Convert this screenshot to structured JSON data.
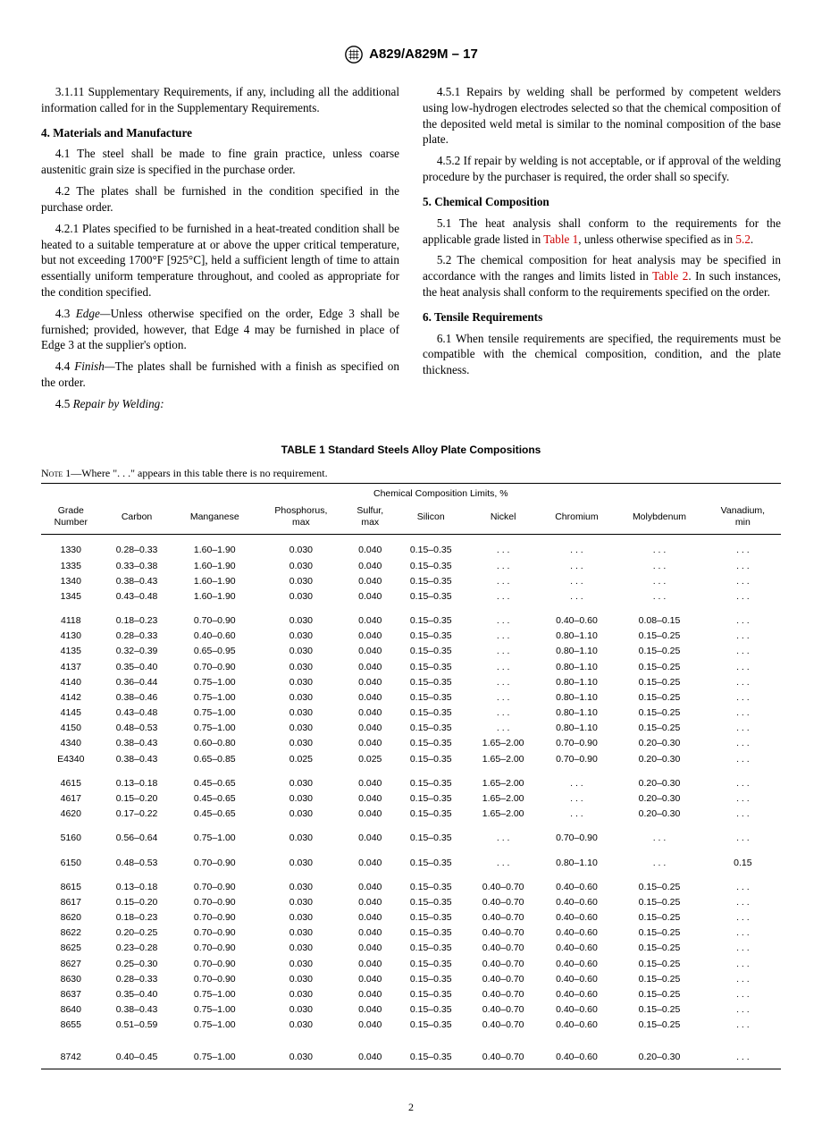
{
  "header": {
    "doc_id": "A829/A829M – 17"
  },
  "left_column": {
    "p_3_1_11": "3.1.11 Supplementary Requirements, if any, including all the additional information called for in the Supplementary Requirements.",
    "sec4_head": "4.  Materials and Manufacture",
    "p_4_1": "4.1 The steel shall be made to fine grain practice, unless coarse austenitic grain size is specified in the purchase order.",
    "p_4_2": "4.2 The plates shall be furnished in the condition specified in the purchase order.",
    "p_4_2_1": "4.2.1 Plates specified to be furnished in a heat-treated condition shall be heated to a suitable temperature at or above the upper critical temperature, but not exceeding 1700°F [925°C], held a sufficient length of time to attain essentially uniform temperature throughout, and cooled as appropriate for the condition specified.",
    "p_4_3_lead": "4.3 ",
    "p_4_3_term": "Edge—",
    "p_4_3_body": "Unless otherwise specified on the order, Edge 3 shall be furnished; provided, however, that Edge 4 may be furnished in place of Edge 3 at the supplier's option.",
    "p_4_4_lead": "4.4 ",
    "p_4_4_term": "Finish—",
    "p_4_4_body": "The plates shall be furnished with a finish as specified on the order.",
    "p_4_5_lead": "4.5 ",
    "p_4_5_term": "Repair by Welding:"
  },
  "right_column": {
    "p_4_5_1": "4.5.1 Repairs by welding shall be performed by competent welders using low-hydrogen electrodes selected so that the chemical composition of the deposited weld metal is similar to the nominal composition of the base plate.",
    "p_4_5_2": "4.5.2 If repair by welding is not acceptable, or if approval of the welding procedure by the purchaser is required, the order shall so specify.",
    "sec5_head": "5.  Chemical Composition",
    "p_5_1_a": "5.1 The heat analysis shall conform to the requirements for the applicable grade listed in ",
    "p_5_1_link1": "Table 1",
    "p_5_1_b": ", unless otherwise speci­fied as in ",
    "p_5_1_link2": "5.2",
    "p_5_1_c": ".",
    "p_5_2_a": "5.2 The chemical composition for heat analysis may be specified in accordance with the ranges and limits listed in ",
    "p_5_2_link": "Table 2",
    "p_5_2_b": ". In such instances, the heat analysis shall conform to the requirements specified on the order.",
    "sec6_head": "6.  Tensile Requirements",
    "p_6_1": "6.1 When tensile requirements are specified, the require­ments must be compatible with the chemical composition, condition, and the plate thickness."
  },
  "table": {
    "title": "TABLE 1 Standard Steels Alloy Plate Compositions",
    "note_label": "Note",
    "note_text": " 1—Where \". . .\" appears in this table there is no requirement.",
    "super_header": "Chemical Composition Limits, %",
    "columns": [
      "Grade\nNumber",
      "Carbon",
      "Manganese",
      "Phosphorus,\nmax",
      "Sulfur,\nmax",
      "Silicon",
      "Nickel",
      "Chromium",
      "Molybdenum",
      "Vanadium,\nmin"
    ],
    "groups": [
      [
        [
          "1330",
          "0.28–0.33",
          "1.60–1.90",
          "0.030",
          "0.040",
          "0.15–0.35",
          ". . .",
          ". . .",
          ". . .",
          ". . ."
        ],
        [
          "1335",
          "0.33–0.38",
          "1.60–1.90",
          "0.030",
          "0.040",
          "0.15–0.35",
          ". . .",
          ". . .",
          ". . .",
          ". . ."
        ],
        [
          "1340",
          "0.38–0.43",
          "1.60–1.90",
          "0.030",
          "0.040",
          "0.15–0.35",
          ". . .",
          ". . .",
          ". . .",
          ". . ."
        ],
        [
          "1345",
          "0.43–0.48",
          "1.60–1.90",
          "0.030",
          "0.040",
          "0.15–0.35",
          ". . .",
          ". . .",
          ". . .",
          ". . ."
        ]
      ],
      [
        [
          "4118",
          "0.18–0.23",
          "0.70–0.90",
          "0.030",
          "0.040",
          "0.15–0.35",
          ". . .",
          "0.40–0.60",
          "0.08–0.15",
          ". . ."
        ],
        [
          "4130",
          "0.28–0.33",
          "0.40–0.60",
          "0.030",
          "0.040",
          "0.15–0.35",
          ". . .",
          "0.80–1.10",
          "0.15–0.25",
          ". . ."
        ],
        [
          "4135",
          "0.32–0.39",
          "0.65–0.95",
          "0.030",
          "0.040",
          "0.15–0.35",
          ". . .",
          "0.80–1.10",
          "0.15–0.25",
          ". . ."
        ],
        [
          "4137",
          "0.35–0.40",
          "0.70–0.90",
          "0.030",
          "0.040",
          "0.15–0.35",
          ". . .",
          "0.80–1.10",
          "0.15–0.25",
          ". . ."
        ],
        [
          "4140",
          "0.36–0.44",
          "0.75–1.00",
          "0.030",
          "0.040",
          "0.15–0.35",
          ". . .",
          "0.80–1.10",
          "0.15–0.25",
          ". . ."
        ],
        [
          "4142",
          "0.38–0.46",
          "0.75–1.00",
          "0.030",
          "0.040",
          "0.15–0.35",
          ". . .",
          "0.80–1.10",
          "0.15–0.25",
          ". . ."
        ],
        [
          "4145",
          "0.43–0.48",
          "0.75–1.00",
          "0.030",
          "0.040",
          "0.15–0.35",
          ". . .",
          "0.80–1.10",
          "0.15–0.25",
          ". . ."
        ],
        [
          "4150",
          "0.48–0.53",
          "0.75–1.00",
          "0.030",
          "0.040",
          "0.15–0.35",
          ". . .",
          "0.80–1.10",
          "0.15–0.25",
          ". . ."
        ],
        [
          "4340",
          "0.38–0.43",
          "0.60–0.80",
          "0.030",
          "0.040",
          "0.15–0.35",
          "1.65–2.00",
          "0.70–0.90",
          "0.20–0.30",
          ". . ."
        ],
        [
          "E4340",
          "0.38–0.43",
          "0.65–0.85",
          "0.025",
          "0.025",
          "0.15–0.35",
          "1.65–2.00",
          "0.70–0.90",
          "0.20–0.30",
          ". . ."
        ]
      ],
      [
        [
          "4615",
          "0.13–0.18",
          "0.45–0.65",
          "0.030",
          "0.040",
          "0.15–0.35",
          "1.65–2.00",
          ". . .",
          "0.20–0.30",
          ". . ."
        ],
        [
          "4617",
          "0.15–0.20",
          "0.45–0.65",
          "0.030",
          "0.040",
          "0.15–0.35",
          "1.65–2.00",
          ". . .",
          "0.20–0.30",
          ". . ."
        ],
        [
          "4620",
          "0.17–0.22",
          "0.45–0.65",
          "0.030",
          "0.040",
          "0.15–0.35",
          "1.65–2.00",
          ". . .",
          "0.20–0.30",
          ". . ."
        ]
      ],
      [
        [
          "5160",
          "0.56–0.64",
          "0.75–1.00",
          "0.030",
          "0.040",
          "0.15–0.35",
          ". . .",
          "0.70–0.90",
          ". . .",
          ". . ."
        ]
      ],
      [
        [
          "6150",
          "0.48–0.53",
          "0.70–0.90",
          "0.030",
          "0.040",
          "0.15–0.35",
          ". . .",
          "0.80–1.10",
          ". . .",
          "0.15"
        ]
      ],
      [
        [
          "8615",
          "0.13–0.18",
          "0.70–0.90",
          "0.030",
          "0.040",
          "0.15–0.35",
          "0.40–0.70",
          "0.40–0.60",
          "0.15–0.25",
          ". . ."
        ],
        [
          "8617",
          "0.15–0.20",
          "0.70–0.90",
          "0.030",
          "0.040",
          "0.15–0.35",
          "0.40–0.70",
          "0.40–0.60",
          "0.15–0.25",
          ". . ."
        ],
        [
          "8620",
          "0.18–0.23",
          "0.70–0.90",
          "0.030",
          "0.040",
          "0.15–0.35",
          "0.40–0.70",
          "0.40–0.60",
          "0.15–0.25",
          ". . ."
        ],
        [
          "8622",
          "0.20–0.25",
          "0.70–0.90",
          "0.030",
          "0.040",
          "0.15–0.35",
          "0.40–0.70",
          "0.40–0.60",
          "0.15–0.25",
          ". . ."
        ],
        [
          "8625",
          "0.23–0.28",
          "0.70–0.90",
          "0.030",
          "0.040",
          "0.15–0.35",
          "0.40–0.70",
          "0.40–0.60",
          "0.15–0.25",
          ". . ."
        ],
        [
          "8627",
          "0.25–0.30",
          "0.70–0.90",
          "0.030",
          "0.040",
          "0.15–0.35",
          "0.40–0.70",
          "0.40–0.60",
          "0.15–0.25",
          ". . ."
        ],
        [
          "8630",
          "0.28–0.33",
          "0.70–0.90",
          "0.030",
          "0.040",
          "0.15–0.35",
          "0.40–0.70",
          "0.40–0.60",
          "0.15–0.25",
          ". . ."
        ],
        [
          "8637",
          "0.35–0.40",
          "0.75–1.00",
          "0.030",
          "0.040",
          "0.15–0.35",
          "0.40–0.70",
          "0.40–0.60",
          "0.15–0.25",
          ". . ."
        ],
        [
          "8640",
          "0.38–0.43",
          "0.75–1.00",
          "0.030",
          "0.040",
          "0.15–0.35",
          "0.40–0.70",
          "0.40–0.60",
          "0.15–0.25",
          ". . ."
        ],
        [
          "8655",
          "0.51–0.59",
          "0.75–1.00",
          "0.030",
          "0.040",
          "0.15–0.35",
          "0.40–0.70",
          "0.40–0.60",
          "0.15–0.25",
          ". . ."
        ]
      ],
      [
        [
          "8742",
          "0.40–0.45",
          "0.75–1.00",
          "0.030",
          "0.040",
          "0.15–0.35",
          "0.40–0.70",
          "0.40–0.60",
          "0.20–0.30",
          ". . ."
        ]
      ]
    ]
  },
  "page_number": "2"
}
